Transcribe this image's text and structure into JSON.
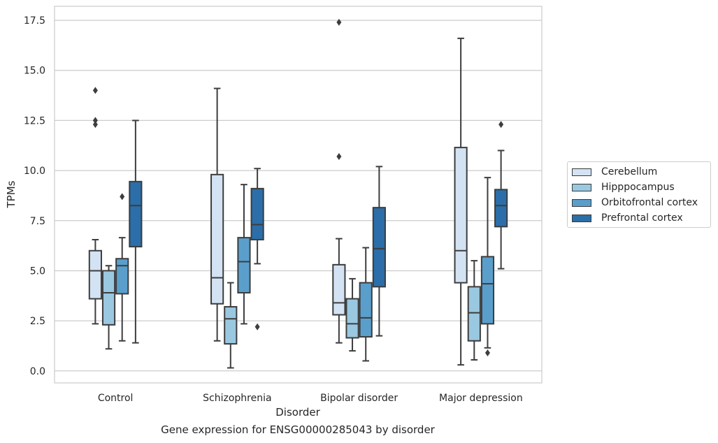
{
  "chart_data": {
    "type": "box",
    "title": "Gene expression for ENSG00000285043 by disorder",
    "xlabel": "Disorder",
    "ylabel": "TPMs",
    "ylim": [
      -0.6,
      18.2
    ],
    "yticks": [
      "0.0",
      "2.5",
      "5.0",
      "7.5",
      "10.0",
      "12.5",
      "15.0",
      "17.5"
    ],
    "grid": "horizontal",
    "legend_position": "right",
    "categories": [
      "Control",
      "Schizophrenia",
      "Bipolar disorder",
      "Major depression"
    ],
    "series": [
      {
        "name": "Cerebellum",
        "color": "#d3e3f3",
        "boxes": [
          {
            "whislo": 2.35,
            "q1": 3.6,
            "med": 5.0,
            "q3": 6.0,
            "whishi": 6.55,
            "fliers": [
              12.3,
              12.5,
              14.0
            ]
          },
          {
            "whislo": 1.5,
            "q1": 3.35,
            "med": 4.65,
            "q3": 9.8,
            "whishi": 14.1,
            "fliers": []
          },
          {
            "whislo": 1.4,
            "q1": 2.8,
            "med": 3.4,
            "q3": 5.3,
            "whishi": 6.6,
            "fliers": [
              10.7,
              17.4
            ]
          },
          {
            "whislo": 0.3,
            "q1": 4.4,
            "med": 6.0,
            "q3": 11.15,
            "whishi": 16.6,
            "fliers": []
          }
        ]
      },
      {
        "name": "Hipppocampus",
        "color": "#9ac8e0",
        "boxes": [
          {
            "whislo": 1.1,
            "q1": 2.3,
            "med": 3.9,
            "q3": 5.0,
            "whishi": 5.25,
            "fliers": []
          },
          {
            "whislo": 0.15,
            "q1": 1.35,
            "med": 2.6,
            "q3": 3.2,
            "whishi": 4.4,
            "fliers": []
          },
          {
            "whislo": 1.0,
            "q1": 1.65,
            "med": 2.35,
            "q3": 3.6,
            "whishi": 4.6,
            "fliers": []
          },
          {
            "whislo": 0.55,
            "q1": 1.5,
            "med": 2.9,
            "q3": 4.2,
            "whishi": 5.5,
            "fliers": []
          }
        ]
      },
      {
        "name": "Orbitofrontal cortex",
        "color": "#5a9fcc",
        "boxes": [
          {
            "whislo": 1.5,
            "q1": 3.85,
            "med": 5.25,
            "q3": 5.6,
            "whishi": 6.65,
            "fliers": [
              8.7
            ]
          },
          {
            "whislo": 2.35,
            "q1": 3.9,
            "med": 5.45,
            "q3": 6.65,
            "whishi": 9.3,
            "fliers": []
          },
          {
            "whislo": 0.5,
            "q1": 1.7,
            "med": 2.65,
            "q3": 4.4,
            "whishi": 6.15,
            "fliers": []
          },
          {
            "whislo": 1.15,
            "q1": 2.35,
            "med": 4.35,
            "q3": 5.7,
            "whishi": 9.65,
            "fliers": [
              0.9
            ]
          }
        ]
      },
      {
        "name": "Prefrontal cortex",
        "color": "#2b6ea9",
        "boxes": [
          {
            "whislo": 1.4,
            "q1": 6.2,
            "med": 8.25,
            "q3": 9.45,
            "whishi": 12.5,
            "fliers": []
          },
          {
            "whislo": 5.35,
            "q1": 6.55,
            "med": 7.3,
            "q3": 9.1,
            "whishi": 10.1,
            "fliers": [
              2.2
            ]
          },
          {
            "whislo": 1.75,
            "q1": 4.2,
            "med": 6.1,
            "q3": 8.15,
            "whishi": 10.2,
            "fliers": []
          },
          {
            "whislo": 5.1,
            "q1": 7.2,
            "med": 8.25,
            "q3": 9.05,
            "whishi": 11.0,
            "fliers": [
              12.3
            ]
          }
        ]
      }
    ]
  }
}
